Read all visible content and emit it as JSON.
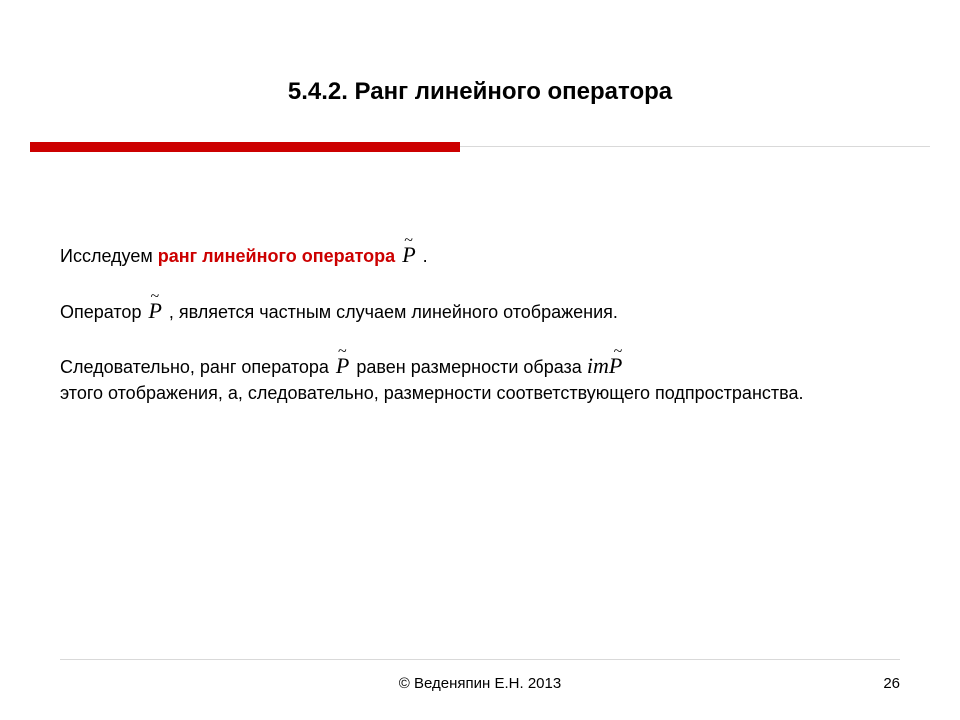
{
  "title": "5.4.2. Ранг линейного оператора",
  "colors": {
    "accent": "#cc0000",
    "separator_light": "#d9d9d9",
    "text": "#000000",
    "background": "#ffffff"
  },
  "p1": {
    "t1": "Исследуем ",
    "t2_red": "ранг линейного оператора",
    "t3": "  ",
    "sym": "P",
    "t4": " ."
  },
  "p2": {
    "t1": "Оператор  ",
    "sym": "P",
    "t2": " , является частным случаем линейного отображения."
  },
  "p3": {
    "t1": "Следовательно, ранг оператора  ",
    "sym": "P",
    "t2": "  равен размерности образа   ",
    "im": "imP",
    "t3": " этого отображения, а, следовательно, размерности соответствующего подпространства."
  },
  "footer": {
    "copyright": "© Веденяпин Е.Н. 2013",
    "page": "26"
  }
}
